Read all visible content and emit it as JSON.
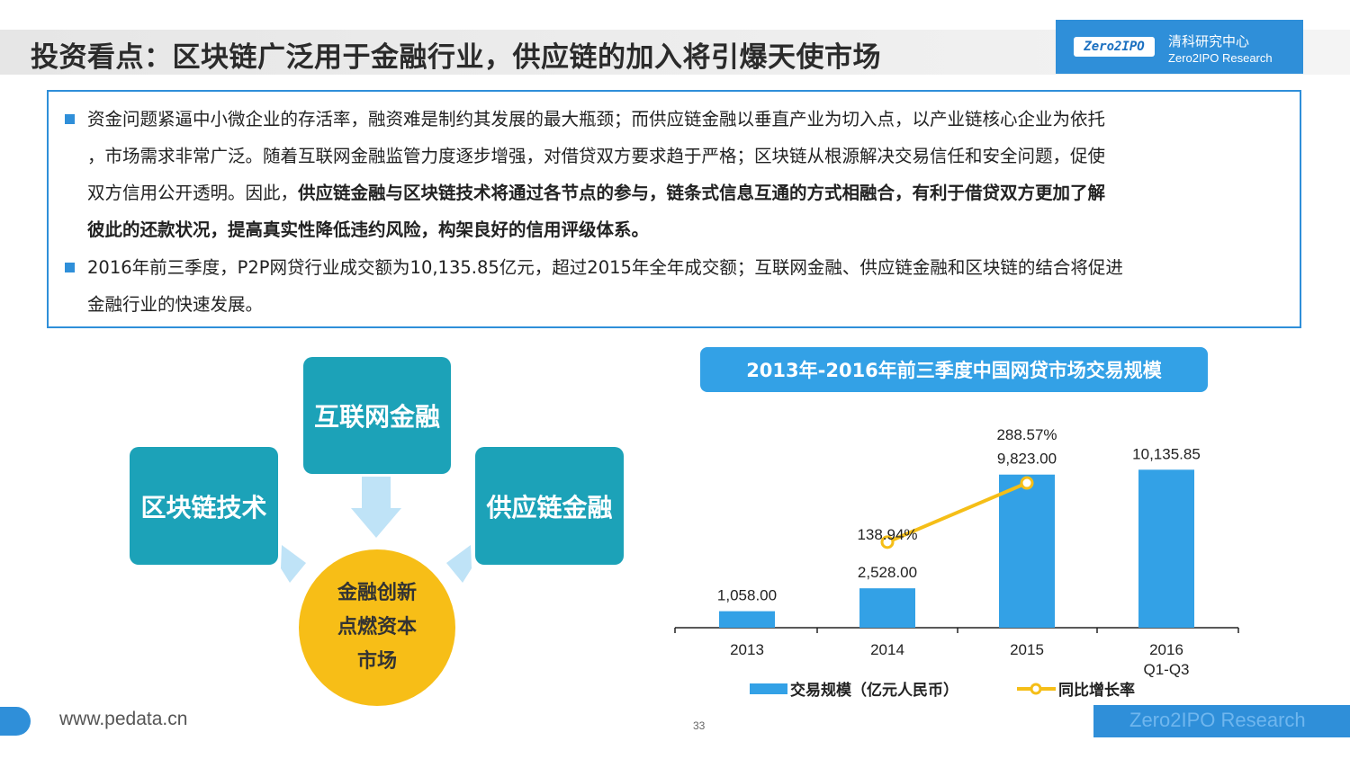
{
  "header": {
    "title": "投资看点：区块链广泛用于金融行业，供应链的加入将引爆天使市场",
    "logo_mark": "Zero2IPO",
    "logo_cn": "清科研究中心",
    "logo_en": "Zero2IPO Research"
  },
  "bullets": [
    {
      "lines": [
        "资金问题紧逼中小微企业的存活率，融资难是制约其发展的最大瓶颈；而供应链金融以垂直产业为切入点，以产业链核心企业为依托",
        "，市场需求非常广泛。随着互联网金融监管力度逐步增强，对借贷双方要求趋于严格；区块链从根源解决交易信任和安全问题，促使"
      ],
      "line3_normal": "双方信用公开透明。因此，",
      "line3_bold": "供应链金融与区块链技术将通过各节点的参与，链条式信息互通的方式相融合，有利于借贷双方更加了解",
      "line4_bold": "彼此的还款状况，提高真实性降低违约风险，构架良好的信用评级体系。"
    },
    {
      "lines": [
        "2016年前三季度，P2P网贷行业成交额为10,135.85亿元，超过2015年全年成交额；互联网金融、供应链金融和区块链的结合将促进",
        "金融行业的快速发展。"
      ]
    }
  ],
  "diagram": {
    "top": "互联网金融",
    "left": "区块链技术",
    "right": "供应链金融",
    "center": [
      "金融创新",
      "点燃资本",
      "市场"
    ]
  },
  "chart_data": {
    "type": "bar",
    "title": "2013年-2016年前三季度中国网贷市场交易规模",
    "categories": [
      "2013",
      "2014",
      "2015",
      "2016\nQ1-Q3"
    ],
    "category_lines": [
      [
        "2013"
      ],
      [
        "2014"
      ],
      [
        "2015"
      ],
      [
        "2016",
        "Q1-Q3"
      ]
    ],
    "series": [
      {
        "name": "交易规模（亿元人民币）",
        "type": "bar",
        "values": [
          1058.0,
          2528.0,
          9823.0,
          10135.85
        ],
        "labels": [
          "1,058.00",
          "2,528.00",
          "9,823.00",
          "10,135.85"
        ],
        "color": "#33a1e6"
      },
      {
        "name": "同比增长率",
        "type": "line",
        "values": [
          null,
          138.94,
          288.57,
          null
        ],
        "labels": [
          "",
          "138.94%",
          "288.57%",
          ""
        ],
        "color": "#f5be17"
      }
    ],
    "ylim": [
      0,
      10500
    ],
    "grid": false,
    "legend": "bottom"
  },
  "footer": {
    "url": "www.pedata.cn",
    "right_text": "Zero2IPO Research",
    "page": "33"
  }
}
